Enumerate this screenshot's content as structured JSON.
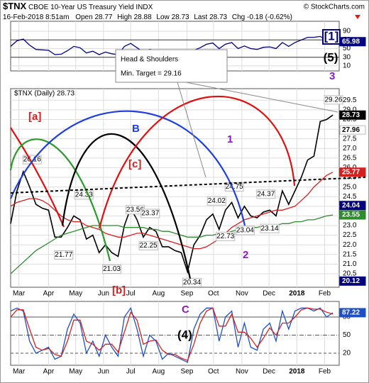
{
  "header": {
    "symbol": "$TNX",
    "name": "CBOE 10-Year US Treasury Yield",
    "exchange": "INDX",
    "credit": "© StockCharts.com",
    "date": "16-Feb-2018 8:51am",
    "quote": [
      {
        "label": "Open",
        "value": 28.77
      },
      {
        "label": "High",
        "value": 28.88
      },
      {
        "label": "Low",
        "value": 28.73
      },
      {
        "label": "Last",
        "value": 28.73
      },
      {
        "label": "Chg",
        "value": -0.18
      }
    ],
    "change_pct": "(-0.62%)"
  },
  "chart_data": [
    {
      "type": "line",
      "xlim": [
        0,
        52
      ],
      "ylim": [
        0,
        100
      ],
      "yticks": [
        90,
        70,
        50,
        30,
        10
      ],
      "grid": true,
      "series": [
        {
          "color": "#000080",
          "values": [
            55,
            68,
            72,
            58,
            48,
            47,
            46,
            36,
            37,
            45,
            55,
            52,
            40,
            44,
            36,
            42,
            38,
            36,
            55,
            62,
            52,
            42,
            48,
            46,
            38,
            39,
            37,
            36,
            28,
            46,
            52,
            60,
            63,
            50,
            60,
            64,
            50,
            56,
            50,
            48,
            53,
            54,
            50,
            64,
            55,
            64,
            70,
            76,
            76,
            78,
            70,
            65.98
          ]
        }
      ],
      "last_values": [
        {
          "value": 65.98,
          "color": "#000080"
        }
      ],
      "annotations": [
        "[1]",
        "(5)"
      ]
    },
    {
      "type": "line",
      "legend": "$TNX (Daily) 28.73",
      "xlim": [
        0,
        52
      ],
      "ylim": [
        19.8,
        30.1
      ],
      "grid": true,
      "xticks": [
        {
          "value": 1.3,
          "label": "Mar"
        },
        {
          "value": 6,
          "label": "Apr"
        },
        {
          "value": 10.3,
          "label": "May"
        },
        {
          "value": 14.7,
          "label": "Jun"
        },
        {
          "value": 19,
          "label": "Jul"
        },
        {
          "value": 23.4,
          "label": "Aug"
        },
        {
          "value": 27.9,
          "label": "Sep"
        },
        {
          "value": 32.1,
          "label": "Oct"
        },
        {
          "value": 36.6,
          "label": "Nov"
        },
        {
          "value": 40.9,
          "label": "Dec"
        },
        {
          "value": 45.3,
          "label": "2018"
        },
        {
          "value": 49.7,
          "label": "Feb"
        }
      ],
      "yticks": [
        29.5,
        {
          "value": 29,
          "label": "29.0"
        },
        28.5,
        {
          "value": 28,
          "label": "28.0"
        },
        27.5,
        {
          "value": 27,
          "label": "27.0"
        },
        26.5,
        {
          "value": 26,
          "label": "26.0"
        },
        25.5,
        {
          "value": 25,
          "label": "25.0"
        },
        24.5,
        {
          "value": 24,
          "label": "24.0"
        },
        23.5,
        {
          "value": 23,
          "label": "23.0"
        },
        22.5,
        {
          "value": 22,
          "label": "22.0"
        },
        21.5,
        {
          "value": 21,
          "label": "21.0"
        },
        20.5
      ],
      "series": [
        {
          "name": "$TNX",
          "color": "#000000",
          "values": [
            23.1,
            24.8,
            25.8,
            25.0,
            24.1,
            23.9,
            23.8,
            22.4,
            22.4,
            22.9,
            23.5,
            23.3,
            22.3,
            22.5,
            21.6,
            22.0,
            21.6,
            21.4,
            23.0,
            23.9,
            23.3,
            22.4,
            22.9,
            22.7,
            21.9,
            21.9,
            21.7,
            21.6,
            20.6,
            22.0,
            22.5,
            23.3,
            23.6,
            22.8,
            23.8,
            24.2,
            23.4,
            24.0,
            23.5,
            23.4,
            23.7,
            23.8,
            23.5,
            24.8,
            24.1,
            24.8,
            25.5,
            26.4,
            26.6,
            28.4,
            28.5,
            28.73
          ]
        },
        {
          "color": "#d62020",
          "values": [
            24.0,
            24.2,
            24.3,
            24.4,
            24.4,
            24.3,
            24.1,
            23.8,
            23.5,
            23.3,
            23.2,
            23.2,
            23.0,
            22.9,
            22.8,
            22.6,
            22.5,
            22.4,
            22.4,
            22.5,
            22.6,
            22.6,
            22.5,
            22.4,
            22.3,
            22.2,
            22.1,
            22.0,
            21.9,
            21.8,
            21.8,
            21.9,
            22.1,
            22.3,
            22.6,
            22.9,
            23.1,
            23.3,
            23.4,
            23.5,
            23.6,
            23.7,
            23.8,
            23.8,
            23.9,
            24.0,
            24.3,
            24.6,
            25.0,
            25.3,
            25.6,
            25.77
          ]
        },
        {
          "color": "#2e8b2e",
          "values": [
            20.5,
            20.8,
            21.1,
            21.4,
            21.7,
            21.9,
            22.1,
            22.3,
            22.5,
            22.6,
            22.7,
            22.8,
            22.9,
            23.0,
            23.0,
            23.0,
            23.0,
            23.0,
            22.9,
            22.9,
            22.9,
            22.9,
            22.8,
            22.8,
            22.7,
            22.7,
            22.6,
            22.5,
            22.4,
            22.4,
            22.4,
            22.5,
            22.5,
            22.6,
            22.6,
            22.7,
            22.8,
            22.8,
            22.9,
            22.9,
            23.0,
            23.0,
            23.0,
            23.1,
            23.1,
            23.2,
            23.2,
            23.3,
            23.3,
            23.4,
            23.5,
            23.55
          ]
        }
      ],
      "point_labels": [
        {
          "x": 3.4,
          "y": 26.16
        },
        {
          "x": 11.6,
          "y": 24.33
        },
        {
          "x": 8.4,
          "y": 21.77
        },
        {
          "x": 19.7,
          "y": 23.56
        },
        {
          "x": 22.1,
          "y": 23.37
        },
        {
          "x": 21.8,
          "y": 22.25
        },
        {
          "x": 16,
          "y": 21.03
        },
        {
          "x": 28.7,
          "y": 20.34
        },
        {
          "x": 32.6,
          "y": 24.02
        },
        {
          "x": 35.4,
          "y": 24.75
        },
        {
          "x": 34,
          "y": 22.73
        },
        {
          "x": 37.1,
          "y": 23.04
        },
        {
          "x": 40.4,
          "y": 24.37
        },
        {
          "x": 41,
          "y": 23.14
        },
        {
          "x": 51.1,
          "y": 29.26
        }
      ],
      "last_values": [
        {
          "value": 28.73,
          "color": "#000000"
        },
        {
          "value": 27.96,
          "color": "#ffffff"
        },
        {
          "value": 25.77,
          "color": "#d62020"
        },
        {
          "value": 24.04,
          "color": "#000080"
        },
        {
          "value": 23.55,
          "color": "#2e8b2e"
        },
        {
          "value": 20.12,
          "color": "#000080"
        }
      ],
      "annotations": [
        "[a]",
        "B",
        "[c]",
        "1",
        "2",
        "3",
        "[b]"
      ],
      "target_note": [
        "Head & Shoulders",
        "Min. Target = 29.16"
      ]
    },
    {
      "type": "line",
      "xlim": [
        0,
        52
      ],
      "ylim": [
        0,
        100
      ],
      "yticks": [
        80,
        50,
        20
      ],
      "grid": true,
      "xticks": [
        {
          "value": 1.3,
          "label": "Mar"
        },
        {
          "value": 6,
          "label": "Apr"
        },
        {
          "value": 10.3,
          "label": "May"
        },
        {
          "value": 14.7,
          "label": "Jun"
        },
        {
          "value": 19,
          "label": "Jul"
        },
        {
          "value": 23.4,
          "label": "Aug"
        },
        {
          "value": 27.9,
          "label": "Sep"
        },
        {
          "value": 32.1,
          "label": "Oct"
        },
        {
          "value": 36.6,
          "label": "Nov"
        },
        {
          "value": 40.9,
          "label": "Dec"
        },
        {
          "value": 45.3,
          "label": "2018"
        },
        {
          "value": 49.7,
          "label": "Feb"
        }
      ],
      "series": [
        {
          "color": "#1f4fc8",
          "values": [
            90,
            95,
            90,
            40,
            20,
            25,
            30,
            10,
            15,
            60,
            85,
            70,
            20,
            40,
            15,
            50,
            30,
            15,
            80,
            95,
            60,
            15,
            50,
            40,
            10,
            20,
            15,
            10,
            5,
            60,
            85,
            95,
            95,
            40,
            80,
            90,
            30,
            70,
            30,
            25,
            60,
            70,
            40,
            90,
            60,
            90,
            95,
            95,
            90,
            95,
            80,
            87.22
          ]
        },
        {
          "color": "#d62020",
          "values": [
            80,
            92,
            92,
            60,
            30,
            25,
            28,
            18,
            15,
            40,
            75,
            75,
            40,
            35,
            25,
            35,
            35,
            22,
            55,
            88,
            75,
            35,
            40,
            42,
            25,
            18,
            18,
            12,
            8,
            35,
            70,
            90,
            95,
            65,
            65,
            85,
            55,
            55,
            45,
            30,
            45,
            62,
            50,
            70,
            70,
            80,
            92,
            95,
            93,
            93,
            88,
            85
          ]
        }
      ],
      "last_values": [
        {
          "value": 87.22,
          "color": "#1f4fc8"
        }
      ],
      "annotations": [
        "C",
        "(4)"
      ]
    }
  ]
}
